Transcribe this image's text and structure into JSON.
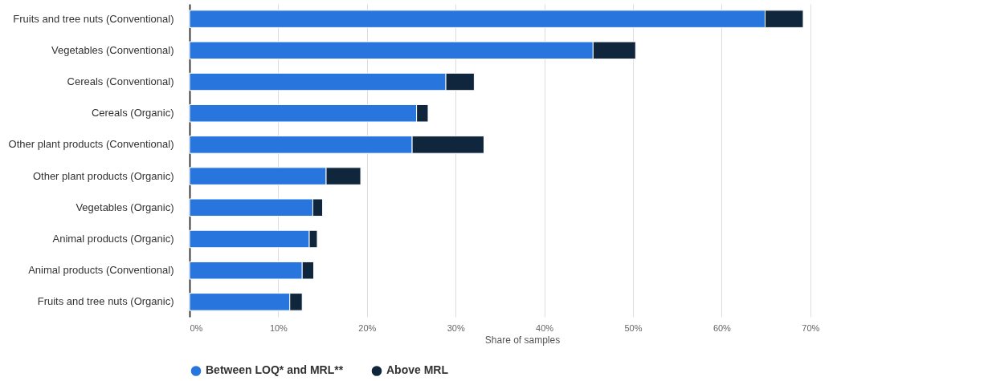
{
  "chart_data": {
    "type": "bar",
    "orientation": "horizontal",
    "stacked": true,
    "xlabel": "Share of samples",
    "categories": [
      "Fruits and tree nuts (Conventional)",
      "Vegetables (Conventional)",
      "Cereals (Conventional)",
      "Cereals (Organic)",
      "Other plant products (Conventional)",
      "Other plant products (Organic)",
      "Vegetables (Organic)",
      "Animal products (Organic)",
      "Animal products (Conventional)",
      "Fruits and tree nuts (Organic)"
    ],
    "series": [
      {
        "name": "Between LOQ* and MRL**",
        "color": "#2876dd",
        "values": [
          64.9,
          45.5,
          28.9,
          25.6,
          25.1,
          15.4,
          13.9,
          13.5,
          12.7,
          11.3
        ]
      },
      {
        "name": "Above MRL",
        "color": "#10263d",
        "values": [
          4.3,
          4.8,
          3.2,
          1.3,
          8.1,
          3.9,
          1.1,
          0.9,
          1.3,
          1.4
        ]
      }
    ],
    "xlim": [
      0,
      75
    ],
    "xticks": [
      {
        "value": 0,
        "label": "0%"
      },
      {
        "value": 10,
        "label": "10%"
      },
      {
        "value": 20,
        "label": "20%"
      },
      {
        "value": 30,
        "label": "30%"
      },
      {
        "value": 40,
        "label": "40%"
      },
      {
        "value": 50,
        "label": "50%"
      },
      {
        "value": 60,
        "label": "60%"
      },
      {
        "value": 70,
        "label": "70%"
      }
    ],
    "grid": "x",
    "legend": "bottom"
  }
}
